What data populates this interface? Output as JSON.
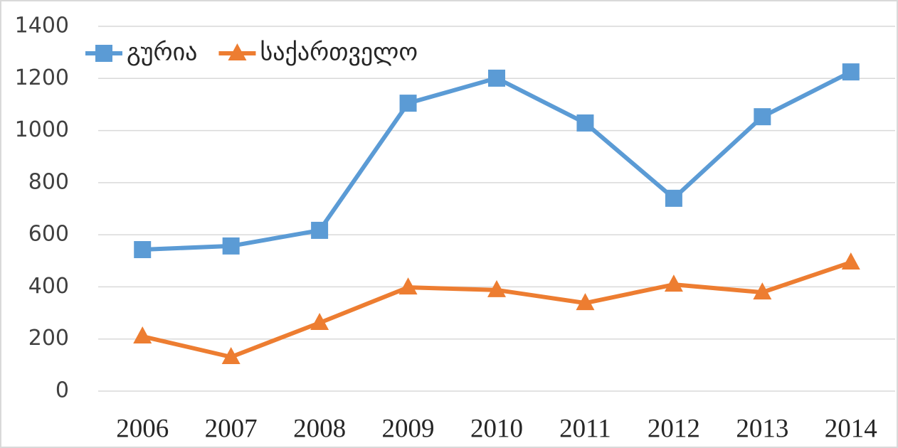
{
  "chart_data": {
    "type": "line",
    "categories": [
      "2006",
      "2007",
      "2008",
      "2009",
      "2010",
      "2011",
      "2012",
      "2013",
      "2014"
    ],
    "series": [
      {
        "name": "გურია",
        "color": "#5b9bd5",
        "marker": "square",
        "values": [
          543,
          557,
          617,
          1105,
          1201,
          1029,
          740,
          1053,
          1225
        ]
      },
      {
        "name": "საქართველო",
        "color": "#ed7d31",
        "marker": "triangle",
        "values": [
          210,
          131,
          262,
          398,
          388,
          338,
          409,
          379,
          494
        ]
      }
    ],
    "ylim": [
      0,
      1400
    ],
    "yticks": [
      0,
      200,
      400,
      600,
      800,
      1000,
      1200,
      1400
    ],
    "grid": true,
    "legend": "top-left"
  }
}
